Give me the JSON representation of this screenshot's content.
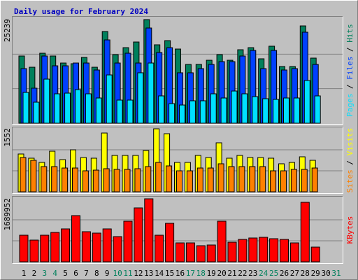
{
  "chart_data": [
    {
      "type": "bar",
      "title": "Daily usage for February 2024",
      "ylim": [
        0,
        25239
      ],
      "yticks": [
        25239
      ],
      "grid": true,
      "legend_separator": "/",
      "series": [
        {
          "name": "Hits",
          "color": "#00805c",
          "values": [
            16370,
            13640,
            17050,
            16370,
            14660,
            14490,
            16030,
            13640,
            22340,
            16710,
            18410,
            19780,
            25239,
            19100,
            20120,
            18070,
            14320,
            14320,
            15340,
            16710,
            15340,
            17900,
            18410,
            15690,
            18760,
            13810,
            13810,
            23700,
            15860,
            null,
            null
          ]
        },
        {
          "name": "Files",
          "color": "#0040ff",
          "values": [
            13300,
            8530,
            16370,
            13980,
            13980,
            14660,
            14660,
            12960,
            20290,
            14660,
            17050,
            14660,
            23190,
            17220,
            18410,
            12280,
            12280,
            13300,
            14320,
            15000,
            15000,
            16370,
            17730,
            13300,
            17730,
            12960,
            13300,
            22170,
            14320,
            null,
            null
          ]
        },
        {
          "name": "Pages",
          "color": "#00e0ff",
          "values": [
            7500,
            5120,
            10740,
            7160,
            7330,
            8180,
            7160,
            6140,
            11760,
            5630,
            5630,
            12280,
            14660,
            6650,
            4770,
            4430,
            5460,
            5460,
            7160,
            6140,
            7840,
            7160,
            6480,
            5970,
            5800,
            6140,
            6140,
            10400,
            6650,
            null,
            null
          ]
        }
      ]
    },
    {
      "type": "bar",
      "ylim": [
        0,
        1552
      ],
      "yticks": [
        1552
      ],
      "grid": true,
      "legend_separator": "/",
      "series": [
        {
          "name": "Visits",
          "color": "#ffff00",
          "values": [
            931,
            828,
            724,
            1000,
            793,
            1034,
            845,
            828,
            1448,
            896,
            896,
            896,
            1017,
            1552,
            1431,
            724,
            724,
            896,
            845,
            1207,
            828,
            896,
            845,
            845,
            828,
            690,
            724,
            862,
            776,
            null,
            null
          ]
        },
        {
          "name": "Sites",
          "color": "#ff8000",
          "values": [
            845,
            776,
            621,
            621,
            586,
            586,
            517,
            534,
            569,
            552,
            552,
            569,
            621,
            724,
            638,
            517,
            517,
            586,
            586,
            690,
            621,
            621,
            621,
            621,
            517,
            517,
            552,
            552,
            586,
            null,
            null
          ]
        }
      ]
    },
    {
      "type": "bar",
      "ylim": [
        0,
        1689952
      ],
      "yticks": [
        1689952
      ],
      "grid": true,
      "categories": [
        "1",
        "2",
        "3",
        "4",
        "5",
        "6",
        "7",
        "8",
        "9",
        "10",
        "11",
        "12",
        "13",
        "14",
        "15",
        "16",
        "17",
        "18",
        "19",
        "20",
        "21",
        "22",
        "23",
        "24",
        "25",
        "26",
        "27",
        "28",
        "29",
        "30",
        "31"
      ],
      "label_colors": [
        "#000000",
        "#000000",
        "#00805c",
        "#00805c",
        "#000000",
        "#000000",
        "#000000",
        "#000000",
        "#000000",
        "#00805c",
        "#00805c",
        "#000000",
        "#000000",
        "#000000",
        "#000000",
        "#000000",
        "#00805c",
        "#00805c",
        "#000000",
        "#000000",
        "#000000",
        "#000000",
        "#000000",
        "#00805c",
        "#00805c",
        "#000000",
        "#000000",
        "#000000",
        "#000000",
        "#000000",
        "#00805c"
      ],
      "series": [
        {
          "name": "KBytes",
          "color": "#ff0000",
          "values": [
            713500,
            582100,
            713500,
            788600,
            882500,
            1239300,
            807400,
            769900,
            882500,
            676000,
            1089100,
            1445800,
            1689952,
            713500,
            1032700,
            507000,
            507000,
            431900,
            450600,
            1089100,
            525800,
            600900,
            638400,
            657200,
            619600,
            600900,
            507000,
            1596000,
            394300,
            null,
            null
          ]
        }
      ]
    }
  ]
}
